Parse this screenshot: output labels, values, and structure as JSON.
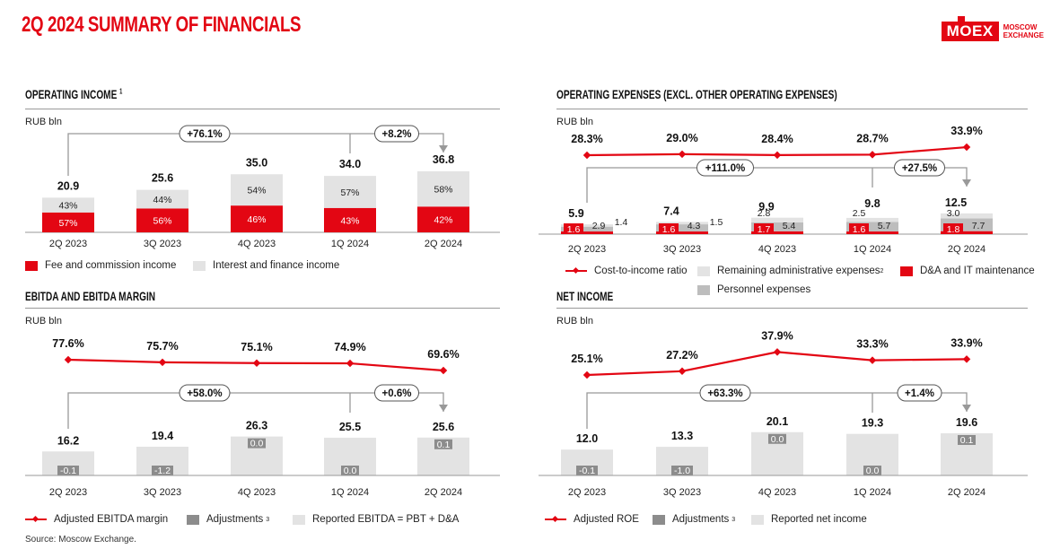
{
  "page": {
    "title": "2Q 2024 SUMMARY OF FINANCIALS",
    "source": "Source: Moscow Exchange."
  },
  "logo": {
    "name": "MOEX",
    "line1": "MOSCOW",
    "line2": "EXCHANGE"
  },
  "colors": {
    "red": "#e30613",
    "light_grey": "#e3e3e3",
    "mid_grey": "#bdbdbd",
    "dark_grey": "#8c8c8c",
    "text": "#111111"
  },
  "chart_data": [
    {
      "id": "operating_income",
      "type": "bar",
      "title": "OPERATING INCOME",
      "title_sup": "1",
      "unit": "RUB bln",
      "categories": [
        "2Q 2023",
        "3Q 2023",
        "4Q 2023",
        "1Q 2024",
        "2Q 2024"
      ],
      "totals": [
        "20.9",
        "25.6",
        "35.0",
        "34.0",
        "36.8"
      ],
      "series": [
        {
          "name": "Fee and commission income",
          "share_labels": [
            "57%",
            "56%",
            "46%",
            "43%",
            "42%"
          ],
          "shares": [
            0.57,
            0.56,
            0.46,
            0.43,
            0.42
          ]
        },
        {
          "name": "Interest and finance income",
          "share_labels": [
            "43%",
            "44%",
            "54%",
            "57%",
            "58%"
          ],
          "shares": [
            0.43,
            0.44,
            0.54,
            0.57,
            0.58
          ]
        }
      ],
      "total_values": [
        20.9,
        25.6,
        35.0,
        34.0,
        36.8
      ],
      "growth": {
        "yoy": "+76.1%",
        "qoq": "+8.2%"
      }
    },
    {
      "id": "operating_expenses",
      "type": "bar",
      "title": "OPERATING EXPENSES (EXCL. OTHER OPERATING EXPENSES)",
      "unit": "RUB bln",
      "categories": [
        "2Q 2023",
        "3Q 2023",
        "4Q 2023",
        "1Q 2024",
        "2Q 2024"
      ],
      "totals": [
        "5.9",
        "7.4",
        "9.9",
        "9.8",
        "12.5"
      ],
      "total_values": [
        5.9,
        7.4,
        9.9,
        9.8,
        12.5
      ],
      "series": [
        {
          "name": "D&A and IT maintenance",
          "labels": [
            "1.6",
            "1.6",
            "1.7",
            "1.6",
            "1.8"
          ],
          "values": [
            1.6,
            1.6,
            1.7,
            1.6,
            1.8
          ]
        },
        {
          "name": "Personnel expenses",
          "labels": [
            "2.9",
            "4.3",
            "5.4",
            "5.7",
            "7.7"
          ],
          "values": [
            2.9,
            4.3,
            5.4,
            5.7,
            7.7
          ]
        },
        {
          "name": "Remaining administrative expenses",
          "name_sup": "2",
          "labels": [
            "1.4",
            "1.5",
            "2.8",
            "2.5",
            "3.0"
          ],
          "values": [
            1.4,
            1.5,
            2.8,
            2.5,
            3.0
          ]
        }
      ],
      "line": {
        "name": "Cost-to-income ratio",
        "labels": [
          "28.3%",
          "29.0%",
          "28.4%",
          "28.7%",
          "33.9%"
        ],
        "values": [
          28.3,
          29.0,
          28.4,
          28.7,
          33.9
        ]
      },
      "growth": {
        "yoy": "+111.0%",
        "qoq": "+27.5%"
      }
    },
    {
      "id": "ebitda",
      "type": "bar",
      "title": "EBITDA AND EBITDA MARGIN",
      "unit": "RUB bln",
      "categories": [
        "2Q 2023",
        "3Q 2023",
        "4Q 2023",
        "1Q 2024",
        "2Q 2024"
      ],
      "totals": [
        "16.2",
        "19.4",
        "26.3",
        "25.5",
        "25.6"
      ],
      "total_values": [
        16.2,
        19.4,
        26.3,
        25.5,
        25.6
      ],
      "adjustments": {
        "name": "Adjustments",
        "name_sup": "3",
        "labels": [
          "-0.1",
          "-1.2",
          "0.0",
          "0.0",
          "0.1"
        ],
        "values": [
          -0.1,
          -1.2,
          0.0,
          0.0,
          0.1
        ]
      },
      "bar_series_name": "Reported EBITDA = PBT + D&A",
      "line": {
        "name": "Adjusted EBITDA margin",
        "labels": [
          "77.6%",
          "75.7%",
          "75.1%",
          "74.9%",
          "69.6%"
        ],
        "values": [
          77.6,
          75.7,
          75.1,
          74.9,
          69.6
        ]
      },
      "growth": {
        "yoy": "+58.0%",
        "qoq": "+0.6%"
      }
    },
    {
      "id": "net_income",
      "type": "bar",
      "title": "NET INCOME",
      "unit": "RUB bln",
      "categories": [
        "2Q 2023",
        "3Q 2023",
        "4Q 2023",
        "1Q 2024",
        "2Q 2024"
      ],
      "totals": [
        "12.0",
        "13.3",
        "20.1",
        "19.3",
        "19.6"
      ],
      "total_values": [
        12.0,
        13.3,
        20.1,
        19.3,
        19.6
      ],
      "adjustments": {
        "name": "Adjustments",
        "name_sup": "3",
        "labels": [
          "-0.1",
          "-1.0",
          "0.0",
          "0.0",
          "0.1"
        ],
        "values": [
          -0.1,
          -1.0,
          0.0,
          0.0,
          0.1
        ]
      },
      "bar_series_name": "Reported net income",
      "line": {
        "name": "Adjusted ROE",
        "labels": [
          "25.1%",
          "27.2%",
          "37.9%",
          "33.3%",
          "33.9%"
        ],
        "values": [
          25.1,
          27.2,
          37.9,
          33.3,
          33.9
        ]
      },
      "growth": {
        "yoy": "+63.3%",
        "qoq": "+1.4%"
      }
    }
  ]
}
